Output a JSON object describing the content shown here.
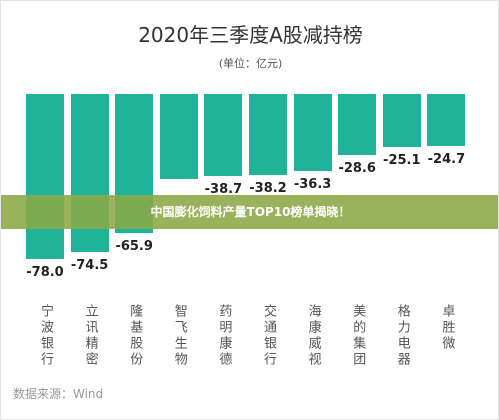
{
  "chart_data": {
    "type": "bar",
    "title": "2020年三季度A股减持榜",
    "subtitle": "(单位：亿元)",
    "categories": [
      "宁波银行",
      "立讯精密",
      "隆基股份",
      "智飞生物",
      "药明康德",
      "交通银行",
      "海康威视",
      "美的集团",
      "格力电器",
      "卓胜微"
    ],
    "values": [
      -78.0,
      -74.5,
      -65.9,
      -40.0,
      -38.7,
      -38.2,
      -36.3,
      -28.6,
      -25.1,
      -24.7
    ],
    "value_labels": [
      "-78.0",
      "-74.5",
      "-65.9",
      null,
      "-38.7",
      "-38.2",
      "-36.3",
      "-28.6",
      "-25.1",
      "-24.7"
    ],
    "color": "#1fb39a",
    "source": "数据来源：Wind"
  },
  "banner": "中国膨化饲料产量TOP10榜单揭晓！"
}
